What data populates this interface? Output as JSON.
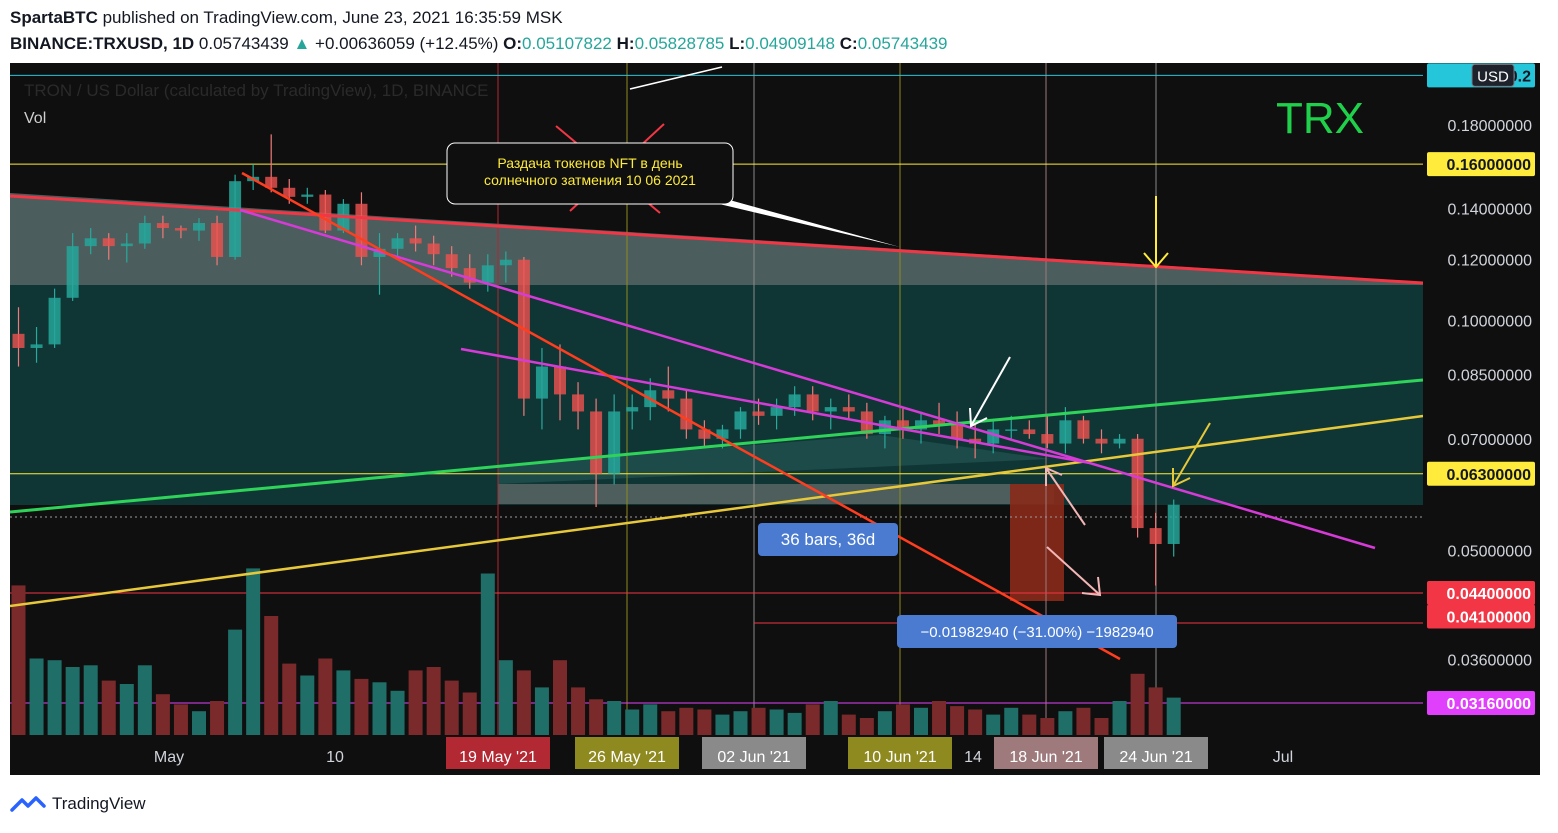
{
  "header": {
    "author": "SpartaBTC",
    "published_text": "published on TradingView.com, June 23, 2021 16:35:59 MSK",
    "symbol": "BINANCE:TRXUSD, 1D",
    "price": "0.05743439",
    "change": "+0.00636059 (+12.45%)",
    "open_label": "O:",
    "open": "0.05107822",
    "high_label": "H:",
    "high": "0.05828785",
    "low_label": "L:",
    "low": "0.04909148",
    "close_label": "C:",
    "close": "0.05743439"
  },
  "footer": {
    "brand": "TradingView"
  },
  "chart_data": {
    "type": "candlestick",
    "title": "TRX",
    "legend_text": "TRON / US Dollar (calculated by TradingView), 1D, BINANCE",
    "volume_label": "Vol",
    "currency_badge": "USD",
    "y_scale": "log",
    "price_ticks": [
      "0.18000000",
      "0.14000000",
      "0.12000000",
      "0.10000000",
      "0.08500000",
      "0.07000000",
      "0.05000000",
      "0.03600000"
    ],
    "highlighted_levels": [
      {
        "label": "0.2",
        "value": 0.209,
        "color": "#26c6da"
      },
      {
        "label": "0.16000000",
        "value": 0.16,
        "color": "#ffeb3b"
      },
      {
        "label": "0.06300000",
        "value": 0.063,
        "color": "#ffeb3b"
      },
      {
        "label": "0.04400000",
        "value": 0.044,
        "color": "#f23645"
      },
      {
        "label": "0.04100000",
        "value": 0.041,
        "color": "#f23645"
      },
      {
        "label": "0.03160000",
        "value": 0.0316,
        "color": "#e040fb"
      }
    ],
    "time_ticks": [
      "May",
      "10",
      "14",
      "Jul"
    ],
    "time_badges": [
      {
        "label": "19 May '21",
        "color": "#b22833"
      },
      {
        "label": "26 May '21",
        "color": "#8f8a1f"
      },
      {
        "label": "02 Jun '21",
        "color": "#8a8a8a"
      },
      {
        "label": "10 Jun '21",
        "color": "#8f8a1f"
      },
      {
        "label": "18 Jun '21",
        "color": "#9e7a7c"
      },
      {
        "label": "24 Jun '21",
        "color": "#8a8a8a"
      }
    ],
    "annotations": {
      "callout": "Раздача токенов NFT  в день солнечного затмения 10 06 2021",
      "bars_range": "36 bars, 36d",
      "price_range": "−0.01982940 (−31.00%) −1982940"
    },
    "candles": [
      {
        "o": 0.096,
        "h": 0.104,
        "l": 0.087,
        "c": 0.092
      },
      {
        "o": 0.092,
        "h": 0.098,
        "l": 0.088,
        "c": 0.093
      },
      {
        "o": 0.093,
        "h": 0.11,
        "l": 0.092,
        "c": 0.107
      },
      {
        "o": 0.107,
        "h": 0.13,
        "l": 0.106,
        "c": 0.125
      },
      {
        "o": 0.125,
        "h": 0.132,
        "l": 0.122,
        "c": 0.128
      },
      {
        "o": 0.128,
        "h": 0.13,
        "l": 0.12,
        "c": 0.125
      },
      {
        "o": 0.125,
        "h": 0.13,
        "l": 0.119,
        "c": 0.126
      },
      {
        "o": 0.126,
        "h": 0.137,
        "l": 0.124,
        "c": 0.134
      },
      {
        "o": 0.134,
        "h": 0.137,
        "l": 0.128,
        "c": 0.132
      },
      {
        "o": 0.132,
        "h": 0.133,
        "l": 0.128,
        "c": 0.131
      },
      {
        "o": 0.131,
        "h": 0.136,
        "l": 0.127,
        "c": 0.134
      },
      {
        "o": 0.134,
        "h": 0.137,
        "l": 0.118,
        "c": 0.121
      },
      {
        "o": 0.121,
        "h": 0.155,
        "l": 0.12,
        "c": 0.152
      },
      {
        "o": 0.152,
        "h": 0.16,
        "l": 0.148,
        "c": 0.154
      },
      {
        "o": 0.154,
        "h": 0.175,
        "l": 0.147,
        "c": 0.149
      },
      {
        "o": 0.149,
        "h": 0.153,
        "l": 0.142,
        "c": 0.145
      },
      {
        "o": 0.145,
        "h": 0.149,
        "l": 0.142,
        "c": 0.146
      },
      {
        "o": 0.146,
        "h": 0.148,
        "l": 0.13,
        "c": 0.131
      },
      {
        "o": 0.131,
        "h": 0.144,
        "l": 0.13,
        "c": 0.142
      },
      {
        "o": 0.142,
        "h": 0.147,
        "l": 0.118,
        "c": 0.121
      },
      {
        "o": 0.121,
        "h": 0.13,
        "l": 0.108,
        "c": 0.124
      },
      {
        "o": 0.124,
        "h": 0.13,
        "l": 0.12,
        "c": 0.128
      },
      {
        "o": 0.128,
        "h": 0.133,
        "l": 0.123,
        "c": 0.126
      },
      {
        "o": 0.126,
        "h": 0.129,
        "l": 0.118,
        "c": 0.122
      },
      {
        "o": 0.122,
        "h": 0.125,
        "l": 0.114,
        "c": 0.117
      },
      {
        "o": 0.117,
        "h": 0.122,
        "l": 0.11,
        "c": 0.112
      },
      {
        "o": 0.112,
        "h": 0.122,
        "l": 0.109,
        "c": 0.118
      },
      {
        "o": 0.118,
        "h": 0.123,
        "l": 0.112,
        "c": 0.12
      },
      {
        "o": 0.12,
        "h": 0.121,
        "l": 0.075,
        "c": 0.079
      },
      {
        "o": 0.079,
        "h": 0.092,
        "l": 0.072,
        "c": 0.087
      },
      {
        "o": 0.087,
        "h": 0.093,
        "l": 0.074,
        "c": 0.08
      },
      {
        "o": 0.08,
        "h": 0.083,
        "l": 0.072,
        "c": 0.076
      },
      {
        "o": 0.076,
        "h": 0.079,
        "l": 0.057,
        "c": 0.063
      },
      {
        "o": 0.063,
        "h": 0.08,
        "l": 0.061,
        "c": 0.076
      },
      {
        "o": 0.076,
        "h": 0.08,
        "l": 0.072,
        "c": 0.077
      },
      {
        "o": 0.077,
        "h": 0.084,
        "l": 0.074,
        "c": 0.081
      },
      {
        "o": 0.081,
        "h": 0.087,
        "l": 0.076,
        "c": 0.079
      },
      {
        "o": 0.079,
        "h": 0.081,
        "l": 0.07,
        "c": 0.072
      },
      {
        "o": 0.072,
        "h": 0.074,
        "l": 0.068,
        "c": 0.07
      },
      {
        "o": 0.07,
        "h": 0.073,
        "l": 0.068,
        "c": 0.072
      },
      {
        "o": 0.072,
        "h": 0.077,
        "l": 0.07,
        "c": 0.076
      },
      {
        "o": 0.076,
        "h": 0.079,
        "l": 0.073,
        "c": 0.075
      },
      {
        "o": 0.075,
        "h": 0.079,
        "l": 0.072,
        "c": 0.077
      },
      {
        "o": 0.077,
        "h": 0.082,
        "l": 0.075,
        "c": 0.08
      },
      {
        "o": 0.08,
        "h": 0.082,
        "l": 0.074,
        "c": 0.076
      },
      {
        "o": 0.076,
        "h": 0.079,
        "l": 0.072,
        "c": 0.077
      },
      {
        "o": 0.077,
        "h": 0.08,
        "l": 0.074,
        "c": 0.076
      },
      {
        "o": 0.076,
        "h": 0.078,
        "l": 0.07,
        "c": 0.071
      },
      {
        "o": 0.071,
        "h": 0.075,
        "l": 0.068,
        "c": 0.074
      },
      {
        "o": 0.074,
        "h": 0.077,
        "l": 0.07,
        "c": 0.072
      },
      {
        "o": 0.072,
        "h": 0.076,
        "l": 0.069,
        "c": 0.074
      },
      {
        "o": 0.074,
        "h": 0.078,
        "l": 0.071,
        "c": 0.073
      },
      {
        "o": 0.073,
        "h": 0.076,
        "l": 0.068,
        "c": 0.07
      },
      {
        "o": 0.07,
        "h": 0.073,
        "l": 0.066,
        "c": 0.069
      },
      {
        "o": 0.069,
        "h": 0.074,
        "l": 0.067,
        "c": 0.072
      },
      {
        "o": 0.072,
        "h": 0.075,
        "l": 0.07,
        "c": 0.072
      },
      {
        "o": 0.072,
        "h": 0.074,
        "l": 0.07,
        "c": 0.071
      },
      {
        "o": 0.071,
        "h": 0.075,
        "l": 0.068,
        "c": 0.069
      },
      {
        "o": 0.069,
        "h": 0.077,
        "l": 0.067,
        "c": 0.074
      },
      {
        "o": 0.074,
        "h": 0.075,
        "l": 0.069,
        "c": 0.07
      },
      {
        "o": 0.07,
        "h": 0.072,
        "l": 0.067,
        "c": 0.069
      },
      {
        "o": 0.069,
        "h": 0.071,
        "l": 0.068,
        "c": 0.07
      },
      {
        "o": 0.07,
        "h": 0.071,
        "l": 0.052,
        "c": 0.0535
      },
      {
        "o": 0.0535,
        "h": 0.056,
        "l": 0.045,
        "c": 0.051
      },
      {
        "o": 0.051,
        "h": 0.0583,
        "l": 0.0491,
        "c": 0.0574
      }
    ],
    "volume": [
      0.88,
      0.45,
      0.44,
      0.4,
      0.41,
      0.32,
      0.3,
      0.41,
      0.24,
      0.18,
      0.14,
      0.2,
      0.62,
      0.98,
      0.7,
      0.42,
      0.35,
      0.45,
      0.38,
      0.33,
      0.31,
      0.26,
      0.38,
      0.4,
      0.32,
      0.25,
      0.95,
      0.44,
      0.38,
      0.28,
      0.44,
      0.28,
      0.21,
      0.2,
      0.15,
      0.18,
      0.14,
      0.16,
      0.15,
      0.12,
      0.14,
      0.16,
      0.15,
      0.13,
      0.18,
      0.2,
      0.12,
      0.1,
      0.14,
      0.18,
      0.16,
      0.2,
      0.17,
      0.15,
      0.12,
      0.16,
      0.12,
      0.1,
      0.14,
      0.16,
      0.1,
      0.2,
      0.36,
      0.28,
      0.22
    ]
  }
}
